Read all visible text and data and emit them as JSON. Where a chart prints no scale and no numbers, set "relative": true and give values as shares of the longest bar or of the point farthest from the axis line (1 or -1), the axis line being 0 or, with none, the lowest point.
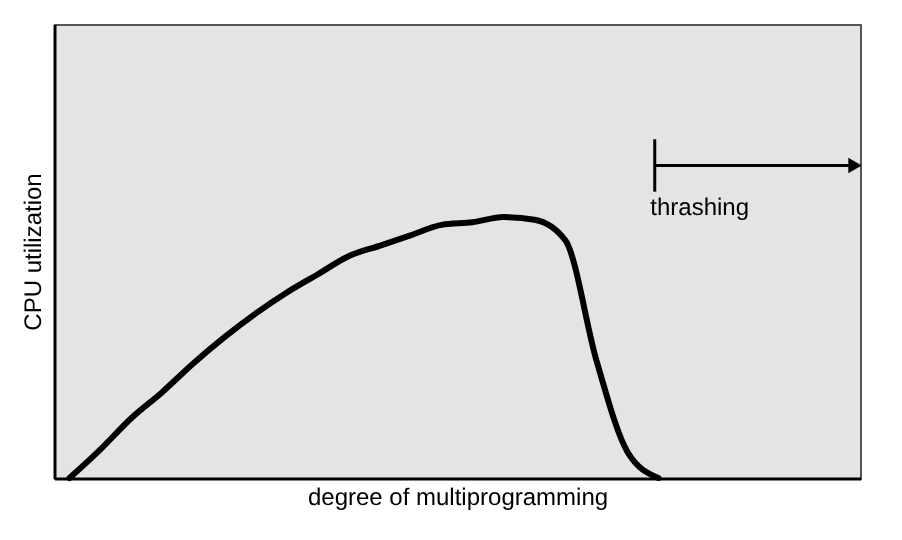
{
  "chart_data": {
    "type": "line",
    "relative": true,
    "xlabel": "degree of multiprogramming",
    "ylabel": "CPU utilization",
    "categories": [
      null,
      null,
      null,
      null,
      null,
      null,
      null,
      null,
      null,
      null,
      null,
      null,
      null,
      null,
      null,
      null,
      null,
      null,
      null,
      null,
      null,
      null,
      null,
      null,
      null
    ],
    "series": [
      {
        "color": "#000000",
        "values": [
          0,
          0.11,
          0.23,
          0.33,
          0.44,
          0.54,
          0.63,
          0.71,
          0.78,
          0.85,
          0.89,
          0.93,
          0.97,
          0.98,
          1,
          0.99,
          0.91,
          0.45,
          0.1,
          0,
          null,
          null,
          null,
          null,
          null
        ]
      }
    ],
    "annotations": [
      "thrashing"
    ],
    "grid": false,
    "marker": "none",
    "line_style": "solid"
  }
}
